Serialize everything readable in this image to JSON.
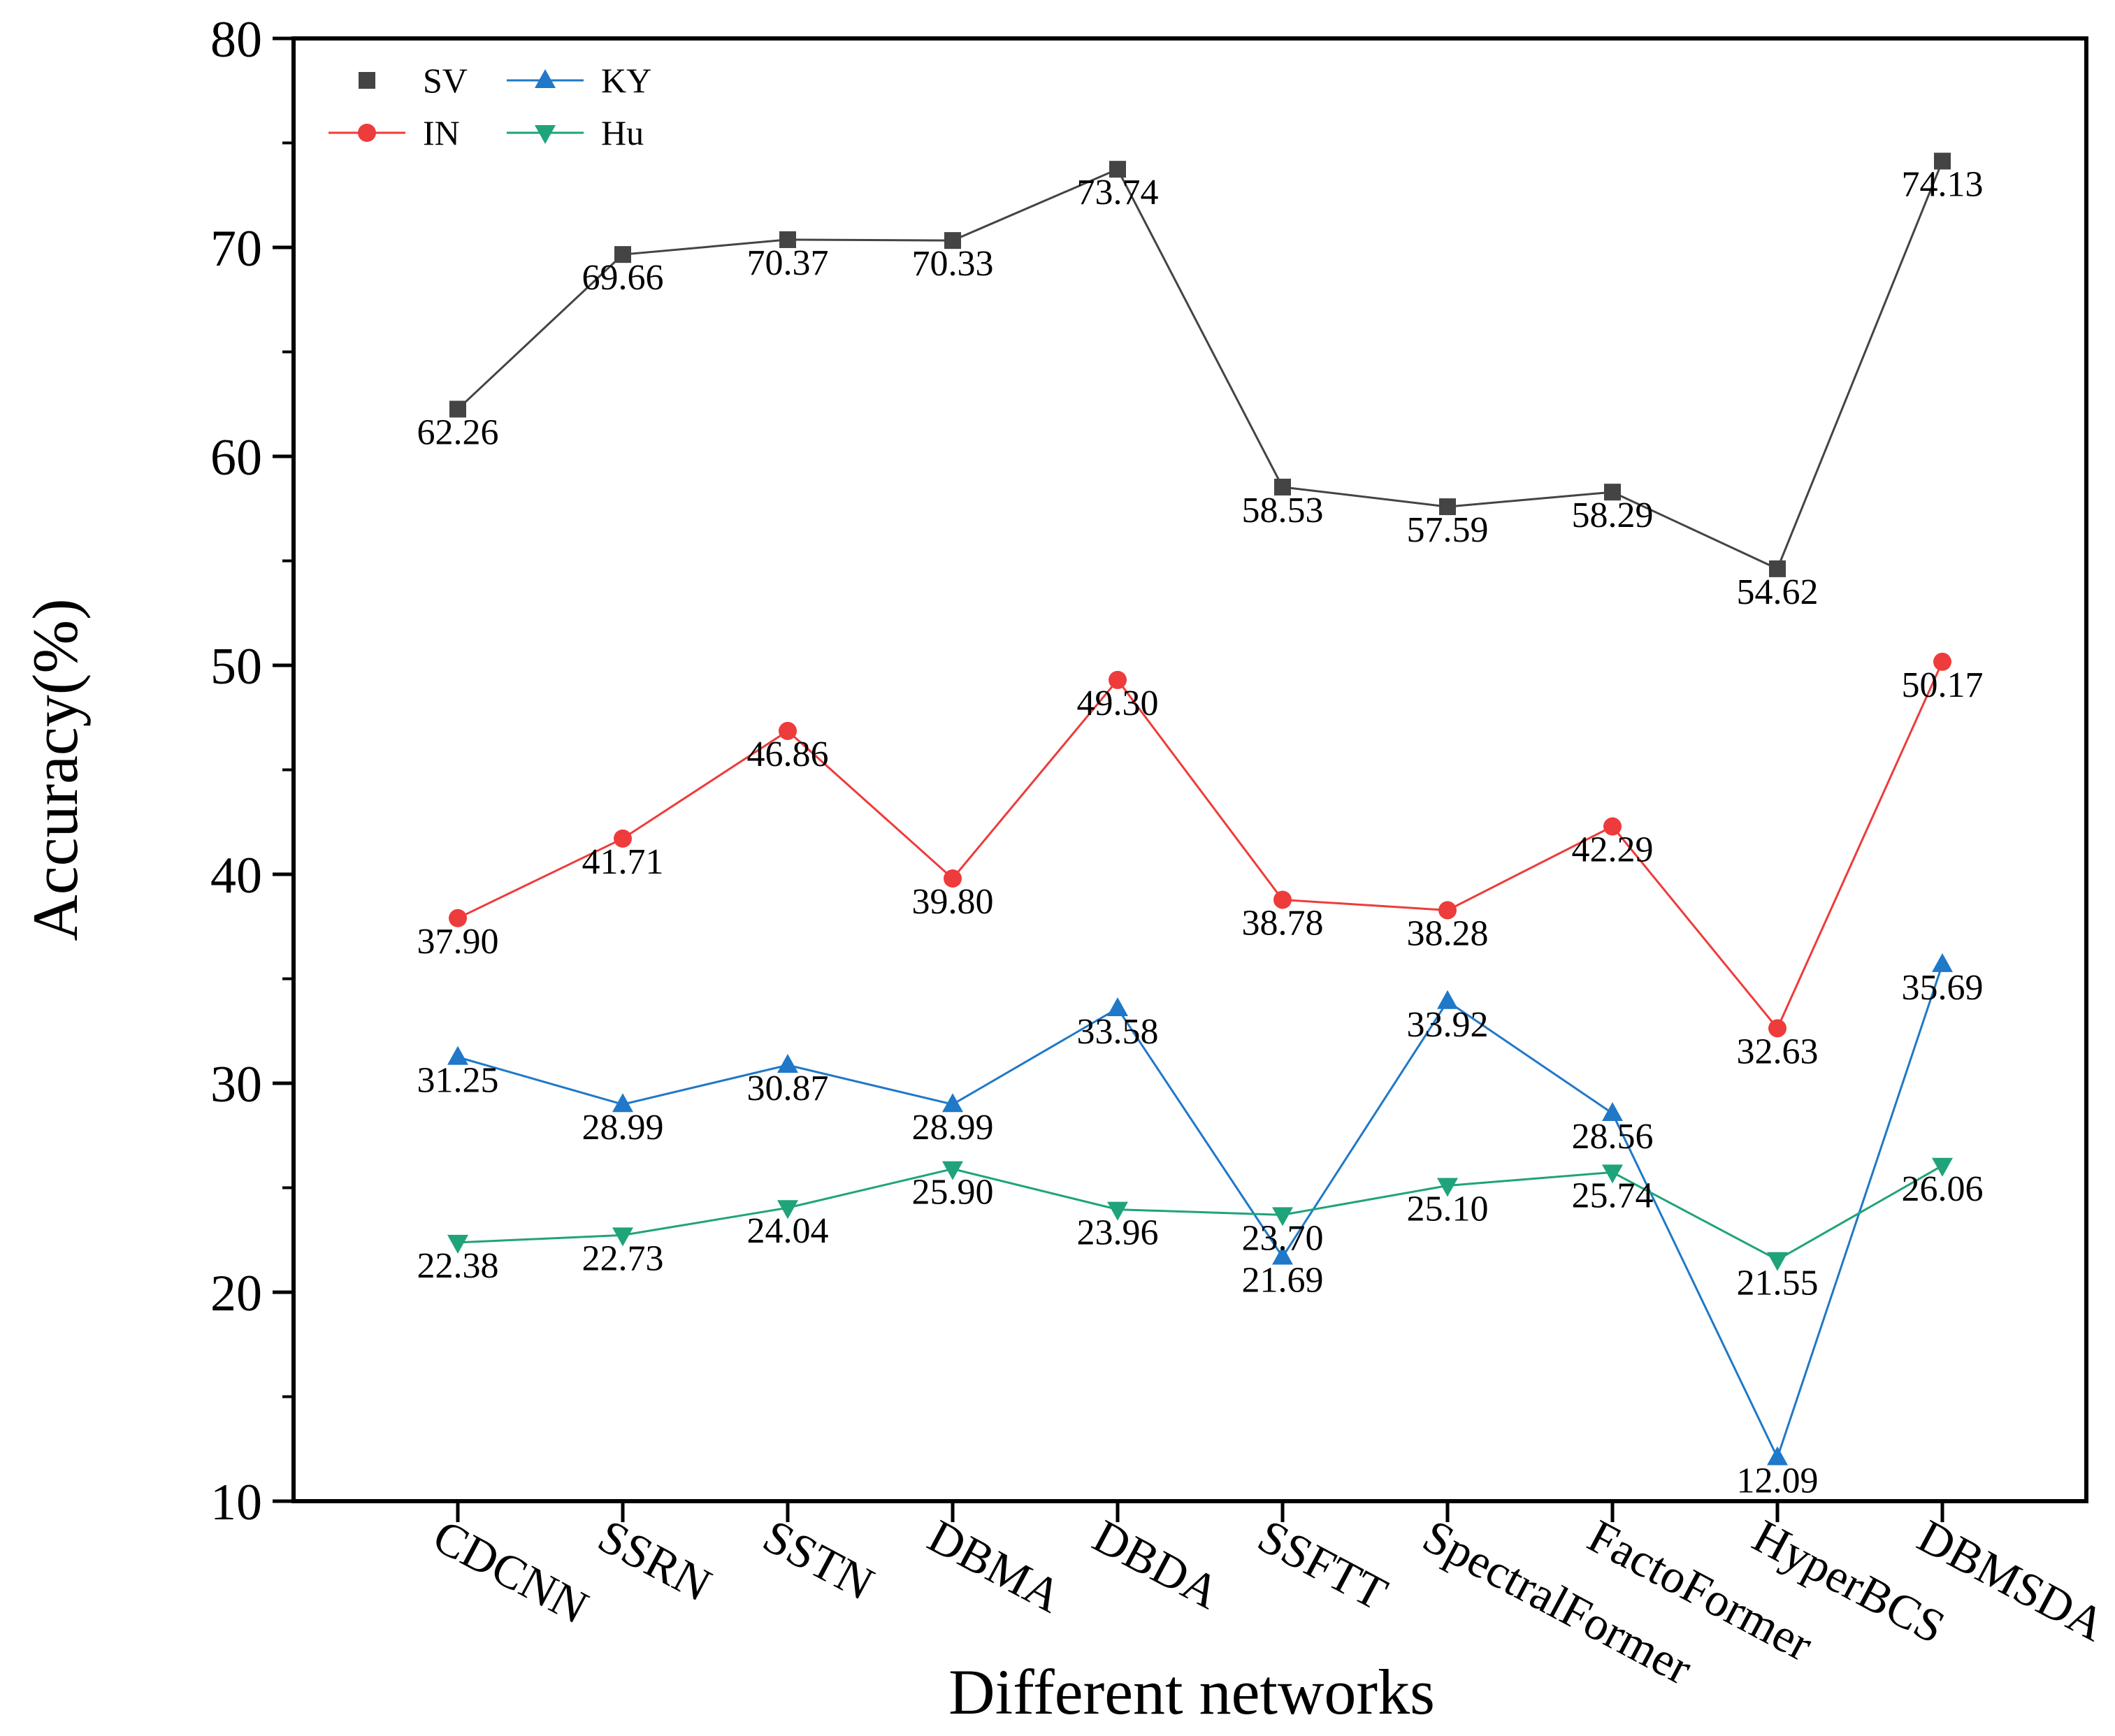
{
  "chart_data": {
    "type": "line",
    "xlabel": "Different networks",
    "ylabel": "Accuracy(%)",
    "ylim": [
      10,
      80
    ],
    "yticks": [
      10,
      20,
      30,
      40,
      50,
      60,
      70,
      80
    ],
    "grid": false,
    "legend_position": "top-left",
    "categories": [
      "CDCNN",
      "SSRN",
      "SSTN",
      "DBMA",
      "DBDA",
      "SSFTT",
      "SpectralFormer",
      "FactoFormer",
      "HyperBCS",
      "DBMSDA"
    ],
    "series": [
      {
        "name": "SV",
        "marker": "square",
        "color": "#444444",
        "values": [
          62.26,
          69.66,
          70.37,
          70.33,
          73.74,
          58.53,
          57.59,
          58.29,
          54.62,
          74.13
        ],
        "labels": [
          "62.26",
          "69.66",
          "70.37",
          "70.33",
          "73.74",
          "58.53",
          "57.59",
          "58.29",
          "54.62",
          "74.13"
        ]
      },
      {
        "name": "IN",
        "marker": "circle",
        "color": "#ee3b3b",
        "values": [
          37.9,
          41.71,
          46.86,
          39.8,
          49.3,
          38.78,
          38.28,
          42.29,
          32.63,
          50.17
        ],
        "labels": [
          "37.90",
          "41.71",
          "46.86",
          "39.80",
          "49.30",
          "38.78",
          "38.28",
          "42.29",
          "32.63",
          "50.17"
        ]
      },
      {
        "name": "KY",
        "marker": "triangle-up",
        "color": "#1f78c8",
        "values": [
          31.25,
          28.99,
          30.87,
          28.99,
          33.58,
          21.69,
          33.92,
          28.56,
          12.09,
          35.69
        ],
        "labels": [
          "31.25",
          "28.99",
          "30.87",
          "28.99",
          "33.58",
          "21.69",
          "33.92",
          "28.56",
          "12.09",
          "35.69"
        ]
      },
      {
        "name": "Hu",
        "marker": "triangle-down",
        "color": "#1fa37a",
        "values": [
          22.38,
          22.73,
          24.04,
          25.9,
          23.96,
          23.7,
          25.1,
          25.74,
          21.55,
          26.06
        ],
        "labels": [
          "22.38",
          "22.73",
          "24.04",
          "25.90",
          "23.96",
          "23.70",
          "25.10",
          "25.74",
          "21.55",
          "26.06"
        ]
      }
    ]
  }
}
